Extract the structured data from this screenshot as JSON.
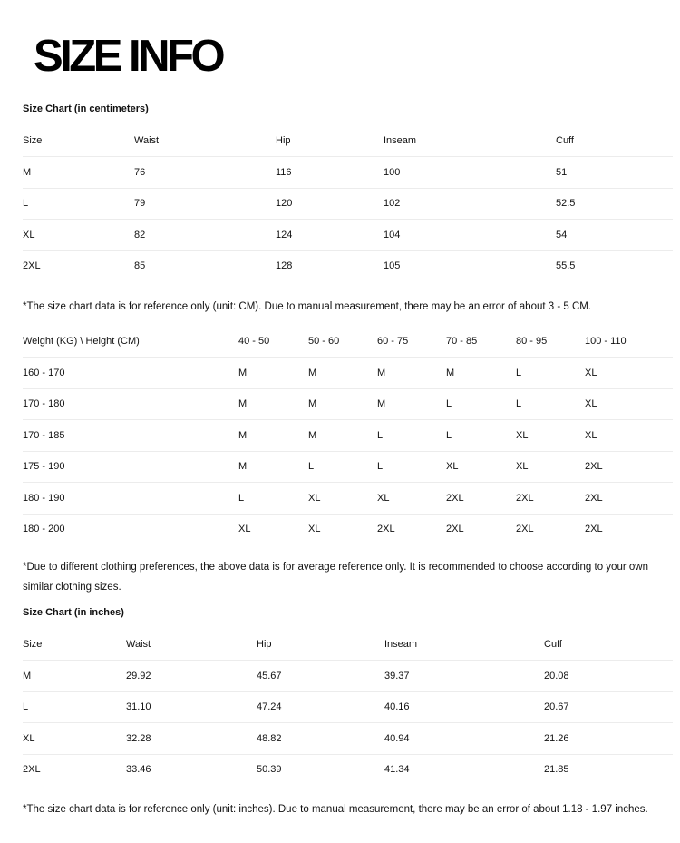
{
  "title": "SIZE INFO",
  "cm_chart": {
    "heading": "Size Chart (in centimeters)",
    "columns": [
      "Size",
      "Waist",
      "Hip",
      "Inseam",
      "Cuff"
    ],
    "rows": [
      [
        "M",
        "76",
        "116",
        "100",
        "51"
      ],
      [
        "L",
        "79",
        "120",
        "102",
        "52.5"
      ],
      [
        "XL",
        "82",
        "124",
        "104",
        "54"
      ],
      [
        "2XL",
        "85",
        "128",
        "105",
        "55.5"
      ]
    ],
    "note": "*The size chart data is for reference only (unit: CM). Due to manual measurement, there may be an error of about 3 - 5 CM."
  },
  "fit_chart": {
    "columns": [
      "Weight (KG) \\ Height (CM)",
      "40 - 50",
      "50 - 60",
      "60 - 75",
      "70 - 85",
      "80 - 95",
      "100 - 110"
    ],
    "rows": [
      [
        "160 - 170",
        "M",
        "M",
        "M",
        "M",
        "L",
        "XL"
      ],
      [
        "170 - 180",
        "M",
        "M",
        "M",
        "L",
        "L",
        "XL"
      ],
      [
        "170 - 185",
        "M",
        "M",
        "L",
        "L",
        "XL",
        "XL"
      ],
      [
        "175 - 190",
        "M",
        "L",
        "L",
        "XL",
        "XL",
        "2XL"
      ],
      [
        "180 - 190",
        "L",
        "XL",
        "XL",
        "2XL",
        "2XL",
        "2XL"
      ],
      [
        "180 - 200",
        "XL",
        "XL",
        "2XL",
        "2XL",
        "2XL",
        "2XL"
      ]
    ],
    "note": "*Due to different clothing preferences, the above data is for average reference only. It is recommended to choose according to your own similar clothing sizes."
  },
  "inch_chart": {
    "heading": "Size Chart (in inches)",
    "columns": [
      "Size",
      "Waist",
      "Hip",
      "Inseam",
      "Cuff"
    ],
    "rows": [
      [
        "M",
        "29.92",
        "45.67",
        "39.37",
        "20.08"
      ],
      [
        "L",
        "31.10",
        "47.24",
        "40.16",
        "20.67"
      ],
      [
        "XL",
        "32.28",
        "48.82",
        "40.94",
        "21.26"
      ],
      [
        "2XL",
        "33.46",
        "50.39",
        "41.34",
        "21.85"
      ]
    ],
    "note": "*The size chart data is for reference only (unit: inches). Due to manual measurement, there may be an error of about 1.18 - 1.97 inches."
  }
}
